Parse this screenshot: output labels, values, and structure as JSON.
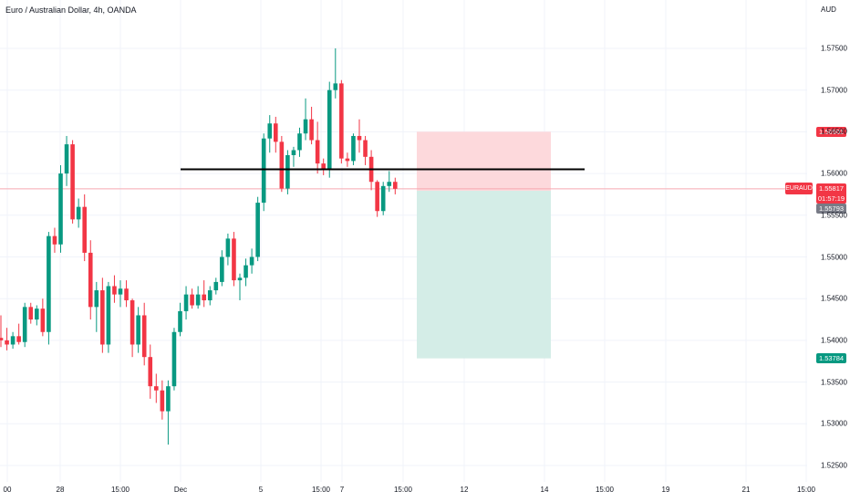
{
  "header": {
    "title": "Euro / Australian Dollar, 4h, OANDA",
    "currency": "AUD"
  },
  "price_axis": {
    "ticks": [
      "1.57500",
      "1.57000",
      "1.56500",
      "1.56000",
      "1.55500",
      "1.55000",
      "1.54500",
      "1.54000",
      "1.53500",
      "1.53000",
      "1.52500"
    ],
    "stop_label": "1.56501",
    "last_price_label": "1.55817",
    "countdown": "01:57:19",
    "entry_label": "1.55793",
    "target_label": "1.53784",
    "symbol_label": "EURAUD"
  },
  "time_axis": {
    "ticks": [
      "00",
      "28",
      "15:00",
      "Dec",
      "5",
      "15:00",
      "7",
      "15:00",
      "12",
      "14",
      "15:00",
      "19",
      "21",
      "15:00"
    ]
  },
  "colors": {
    "up": "#089981",
    "down": "#f23645",
    "stop_zone": "#fdd9dc",
    "target_zone": "#d4ede7",
    "target_badge": "#089981",
    "entry_badge": "#787b86"
  },
  "chart_data": {
    "type": "candlestick",
    "instrument": "EURAUD",
    "timeframe": "4h",
    "ylim": [
      1.525,
      1.58
    ],
    "horizontal_line": 1.5605,
    "position": {
      "type": "short",
      "entry": 1.55793,
      "stop": 1.56501,
      "target": 1.53784
    },
    "candles": [
      [
        1.5403,
        1.543,
        1.5392,
        1.54
      ],
      [
        1.54,
        1.5415,
        1.5388,
        1.5395
      ],
      [
        1.5395,
        1.541,
        1.539,
        1.5405
      ],
      [
        1.5405,
        1.542,
        1.5395,
        1.5398
      ],
      [
        1.5398,
        1.5445,
        1.5392,
        1.544
      ],
      [
        1.544,
        1.5445,
        1.542,
        1.5425
      ],
      [
        1.5425,
        1.5442,
        1.5418,
        1.5438
      ],
      [
        1.5438,
        1.545,
        1.5405,
        1.541
      ],
      [
        1.541,
        1.553,
        1.5395,
        1.5525
      ],
      [
        1.5525,
        1.5535,
        1.5505,
        1.5515
      ],
      [
        1.5515,
        1.561,
        1.5505,
        1.56
      ],
      [
        1.56,
        1.5645,
        1.5585,
        1.5635
      ],
      [
        1.5635,
        1.564,
        1.554,
        1.5545
      ],
      [
        1.5545,
        1.557,
        1.5535,
        1.556
      ],
      [
        1.556,
        1.5575,
        1.5495,
        1.5505
      ],
      [
        1.5505,
        1.552,
        1.5425,
        1.544
      ],
      [
        1.544,
        1.547,
        1.541,
        1.546
      ],
      [
        1.546,
        1.5475,
        1.5385,
        1.5395
      ],
      [
        1.5395,
        1.547,
        1.5385,
        1.5465
      ],
      [
        1.5465,
        1.5478,
        1.5445,
        1.5455
      ],
      [
        1.5455,
        1.5472,
        1.544,
        1.5462
      ],
      [
        1.5462,
        1.5472,
        1.544,
        1.5448
      ],
      [
        1.5448,
        1.545,
        1.538,
        1.5395
      ],
      [
        1.5395,
        1.544,
        1.5385,
        1.543
      ],
      [
        1.543,
        1.5445,
        1.537,
        1.538
      ],
      [
        1.538,
        1.5395,
        1.533,
        1.5345
      ],
      [
        1.5345,
        1.536,
        1.5325,
        1.534
      ],
      [
        1.534,
        1.5352,
        1.5305,
        1.5315
      ],
      [
        1.5315,
        1.5352,
        1.5275,
        1.5345
      ],
      [
        1.5345,
        1.5415,
        1.534,
        1.541
      ],
      [
        1.541,
        1.5445,
        1.5405,
        1.5435
      ],
      [
        1.5435,
        1.5465,
        1.5425,
        1.5455
      ],
      [
        1.5455,
        1.5462,
        1.5438,
        1.5442
      ],
      [
        1.5442,
        1.5465,
        1.5438,
        1.5455
      ],
      [
        1.5455,
        1.5472,
        1.544,
        1.5448
      ],
      [
        1.5448,
        1.5465,
        1.5442,
        1.546
      ],
      [
        1.546,
        1.5475,
        1.5455,
        1.547
      ],
      [
        1.547,
        1.5508,
        1.5465,
        1.55
      ],
      [
        1.55,
        1.5528,
        1.549,
        1.5522
      ],
      [
        1.5522,
        1.553,
        1.5465,
        1.5472
      ],
      [
        1.5472,
        1.548,
        1.5448,
        1.5475
      ],
      [
        1.5475,
        1.5498,
        1.5465,
        1.549
      ],
      [
        1.549,
        1.551,
        1.548,
        1.55
      ],
      [
        1.55,
        1.5572,
        1.5495,
        1.5565
      ],
      [
        1.5565,
        1.5648,
        1.5555,
        1.5642
      ],
      [
        1.5642,
        1.567,
        1.5625,
        1.566
      ],
      [
        1.566,
        1.5668,
        1.5625,
        1.5638
      ],
      [
        1.5638,
        1.5645,
        1.5578,
        1.5582
      ],
      [
        1.5582,
        1.5628,
        1.5575,
        1.5622
      ],
      [
        1.5622,
        1.5632,
        1.5608,
        1.5628
      ],
      [
        1.5628,
        1.5655,
        1.562,
        1.5648
      ],
      [
        1.5648,
        1.569,
        1.564,
        1.5665
      ],
      [
        1.5665,
        1.568,
        1.5635,
        1.564
      ],
      [
        1.564,
        1.5662,
        1.56,
        1.5612
      ],
      [
        1.5612,
        1.5618,
        1.5598,
        1.5605
      ],
      [
        1.5605,
        1.571,
        1.5595,
        1.57
      ],
      [
        1.57,
        1.575,
        1.569,
        1.5708
      ],
      [
        1.5708,
        1.5712,
        1.5612,
        1.5618
      ],
      [
        1.5618,
        1.5625,
        1.5608,
        1.5615
      ],
      [
        1.5615,
        1.5648,
        1.561,
        1.5645
      ],
      [
        1.5645,
        1.5665,
        1.5625,
        1.564
      ],
      [
        1.564,
        1.5645,
        1.561,
        1.562
      ],
      [
        1.562,
        1.5628,
        1.558,
        1.559
      ],
      [
        1.559,
        1.5592,
        1.5548,
        1.5555
      ],
      [
        1.5555,
        1.559,
        1.555,
        1.5585
      ],
      [
        1.5585,
        1.5603,
        1.5578,
        1.559
      ],
      [
        1.559,
        1.5595,
        1.5575,
        1.55817
      ]
    ]
  }
}
